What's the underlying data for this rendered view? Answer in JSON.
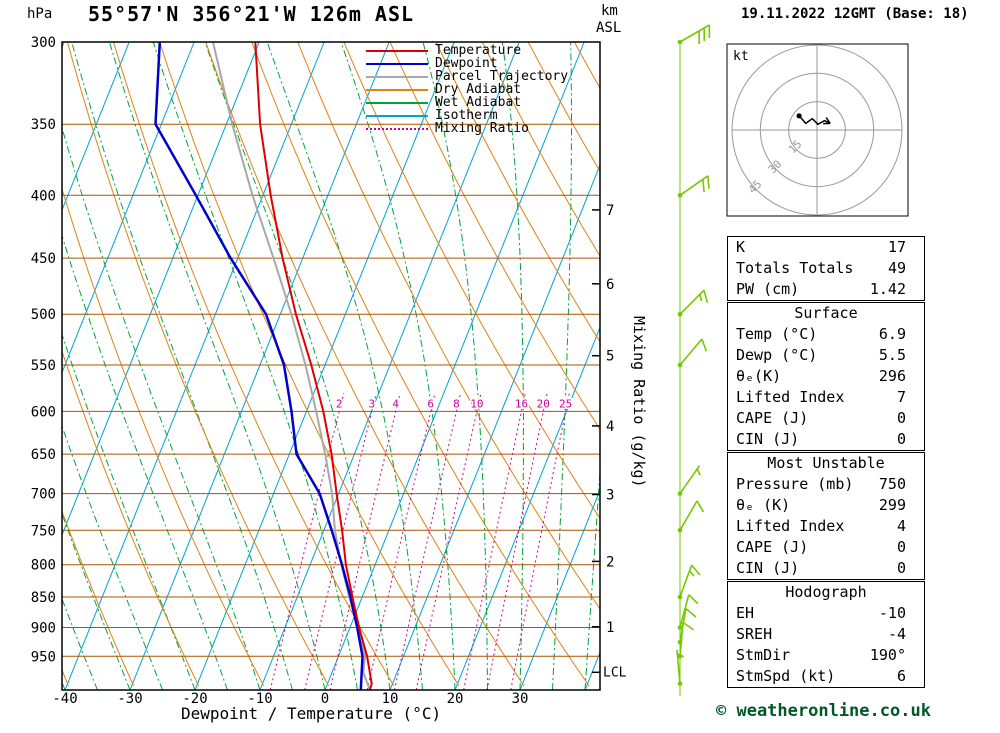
{
  "header": {
    "units_label": "hPa",
    "title": "55°57'N 356°21'W 126m ASL",
    "km_label": "km",
    "asl_label": "ASL",
    "date": "19.11.2022 12GMT (Base: 18)"
  },
  "axes": {
    "pressure_ticks": [
      300,
      350,
      400,
      450,
      500,
      550,
      600,
      650,
      700,
      750,
      800,
      850,
      900,
      950
    ],
    "temp_ticks": [
      -40,
      -30,
      -20,
      -10,
      0,
      10,
      20,
      30
    ],
    "km_ticks": [
      1,
      2,
      3,
      4,
      5,
      6,
      7
    ],
    "lcl_label": "LCL",
    "x_axis_label": "Dewpoint / Temperature (°C)",
    "right_axis_label": "Mixing Ratio (g/kg)"
  },
  "legend": {
    "items": [
      {
        "label": "Temperature",
        "color": "#dd0000",
        "style": "solid"
      },
      {
        "label": "Dewpoint",
        "color": "#0000cc",
        "style": "solid"
      },
      {
        "label": "Parcel Trajectory",
        "color": "#a8a8a8",
        "style": "solid"
      },
      {
        "label": "Dry Adiabat",
        "color": "#e08214",
        "style": "solid"
      },
      {
        "label": "Wet Adiabat",
        "color": "#00a33e",
        "style": "solid"
      },
      {
        "label": "Isotherm",
        "color": "#00a3d7",
        "style": "solid"
      },
      {
        "label": "Mixing Ratio",
        "color": "#cc0099",
        "style": "dotted"
      }
    ]
  },
  "chart_data": {
    "type": "skewt-log-p",
    "pressure_top_hpa": 300,
    "pressure_bottom_hpa": 1012,
    "isotherm_step_c": 10,
    "dry_adiabat_step_c": 10,
    "wet_adiabat_step_c": 5,
    "mixing_ratio_lines_gkg": [
      2,
      3,
      4,
      6,
      8,
      10,
      16,
      20,
      25
    ],
    "km_tick_pressures": {
      "1": 898.8,
      "2": 795.0,
      "3": 701.2,
      "4": 616.6,
      "5": 540.5,
      "6": 472.2,
      "7": 411.1
    },
    "lcl_pressure_hpa": 979,
    "temperature_profile": {
      "pressure_hpa": [
        1012,
        1000,
        950,
        900,
        850,
        800,
        750,
        700,
        650,
        600,
        550,
        500,
        450,
        400,
        350,
        300
      ],
      "temp_c": [
        6.9,
        6.8,
        4.4,
        1.4,
        -1.5,
        -4.5,
        -7.2,
        -10.3,
        -13.5,
        -17.4,
        -22.1,
        -27.6,
        -33.1,
        -38.8,
        -44.8,
        -50.6
      ]
    },
    "dewpoint_profile": {
      "pressure_hpa": [
        1012,
        950,
        900,
        850,
        800,
        750,
        700,
        650,
        600,
        550,
        500,
        450,
        400,
        350,
        300
      ],
      "temp_c": [
        5.5,
        3.7,
        1.1,
        -1.8,
        -5.1,
        -8.8,
        -12.9,
        -18.9,
        -22.3,
        -26.3,
        -32.2,
        -41.1,
        -50.3,
        -60.9,
        -65.3
      ]
    },
    "parcel_profile": {
      "pressure_hpa": [
        1012,
        979,
        950,
        900,
        850,
        800,
        750,
        700,
        650,
        600,
        550,
        500,
        450,
        400,
        350,
        300
      ],
      "temp_c": [
        6.9,
        4.8,
        4.1,
        1.2,
        -2.0,
        -5.2,
        -8.3,
        -11.0,
        -14.5,
        -18.5,
        -23.0,
        -28.3,
        -34.5,
        -41.6,
        -49.1,
        -57.1
      ]
    },
    "wind_barbs": [
      {
        "pressure_hpa": 300,
        "dir_deg": 240,
        "speed_kt": 30
      },
      {
        "pressure_hpa": 400,
        "dir_deg": 235,
        "speed_kt": 20
      },
      {
        "pressure_hpa": 500,
        "dir_deg": 225,
        "speed_kt": 15
      },
      {
        "pressure_hpa": 550,
        "dir_deg": 220,
        "speed_kt": 10
      },
      {
        "pressure_hpa": 700,
        "dir_deg": 215,
        "speed_kt": 5
      },
      {
        "pressure_hpa": 750,
        "dir_deg": 210,
        "speed_kt": 10
      },
      {
        "pressure_hpa": 850,
        "dir_deg": 200,
        "speed_kt": 15
      },
      {
        "pressure_hpa": 900,
        "dir_deg": 195,
        "speed_kt": 10
      },
      {
        "pressure_hpa": 925,
        "dir_deg": 190,
        "speed_kt": 10
      },
      {
        "pressure_hpa": 950,
        "dir_deg": 185,
        "speed_kt": 10
      },
      {
        "pressure_hpa": 1000,
        "dir_deg": 175,
        "speed_kt": 5
      }
    ]
  },
  "hodograph": {
    "unit_label": "kt",
    "rings_kt": [
      15,
      30,
      45
    ],
    "ring_labels": [
      "15",
      "30",
      "45"
    ],
    "trace_kt": [
      [
        -9.5,
        7.5
      ],
      [
        -6,
        3.5
      ],
      [
        -2.5,
        6
      ],
      [
        0.5,
        3
      ],
      [
        4,
        5
      ],
      [
        7,
        3.5
      ]
    ],
    "start_dot_kt": [
      -9.5,
      7.5
    ]
  },
  "tables": [
    {
      "header": null,
      "name": "indices",
      "rows": [
        [
          "K",
          "17"
        ],
        [
          "Totals Totals",
          "49"
        ],
        [
          "PW (cm)",
          "1.42"
        ]
      ]
    },
    {
      "header": "Surface",
      "name": "surface",
      "rows": [
        [
          "Temp (°C)",
          "6.9"
        ],
        [
          "Dewp (°C)",
          "5.5"
        ],
        [
          "θₑ(K)",
          "296"
        ],
        [
          "Lifted Index",
          "7"
        ],
        [
          "CAPE (J)",
          "0"
        ],
        [
          "CIN (J)",
          "0"
        ]
      ]
    },
    {
      "header": "Most Unstable",
      "name": "most-unstable",
      "rows": [
        [
          "Pressure (mb)",
          "750"
        ],
        [
          "θₑ (K)",
          "299"
        ],
        [
          "Lifted Index",
          "4"
        ],
        [
          "CAPE (J)",
          "0"
        ],
        [
          "CIN (J)",
          "0"
        ]
      ]
    },
    {
      "header": "Hodograph",
      "name": "hodograph",
      "rows": [
        [
          "EH",
          "-10"
        ],
        [
          "SREH",
          "-4"
        ],
        [
          "StmDir",
          "190°"
        ],
        [
          "StmSpd (kt)",
          "6"
        ]
      ]
    }
  ],
  "footer": {
    "copyright": "© weatheronline.co.uk"
  },
  "colors": {
    "temperature": "#dd0000",
    "dewpoint": "#0000cc",
    "parcel": "#a8a8a8",
    "dry_adiabat": "#e08214",
    "wet_adiabat": "#00a33e",
    "isotherm": "#00a3d7",
    "mixing_ratio": "#cc0099",
    "pressure_line": "#a85400",
    "wind_barb": "#76c800",
    "hodograph_grid": "#999999",
    "copyright": "#005826"
  }
}
